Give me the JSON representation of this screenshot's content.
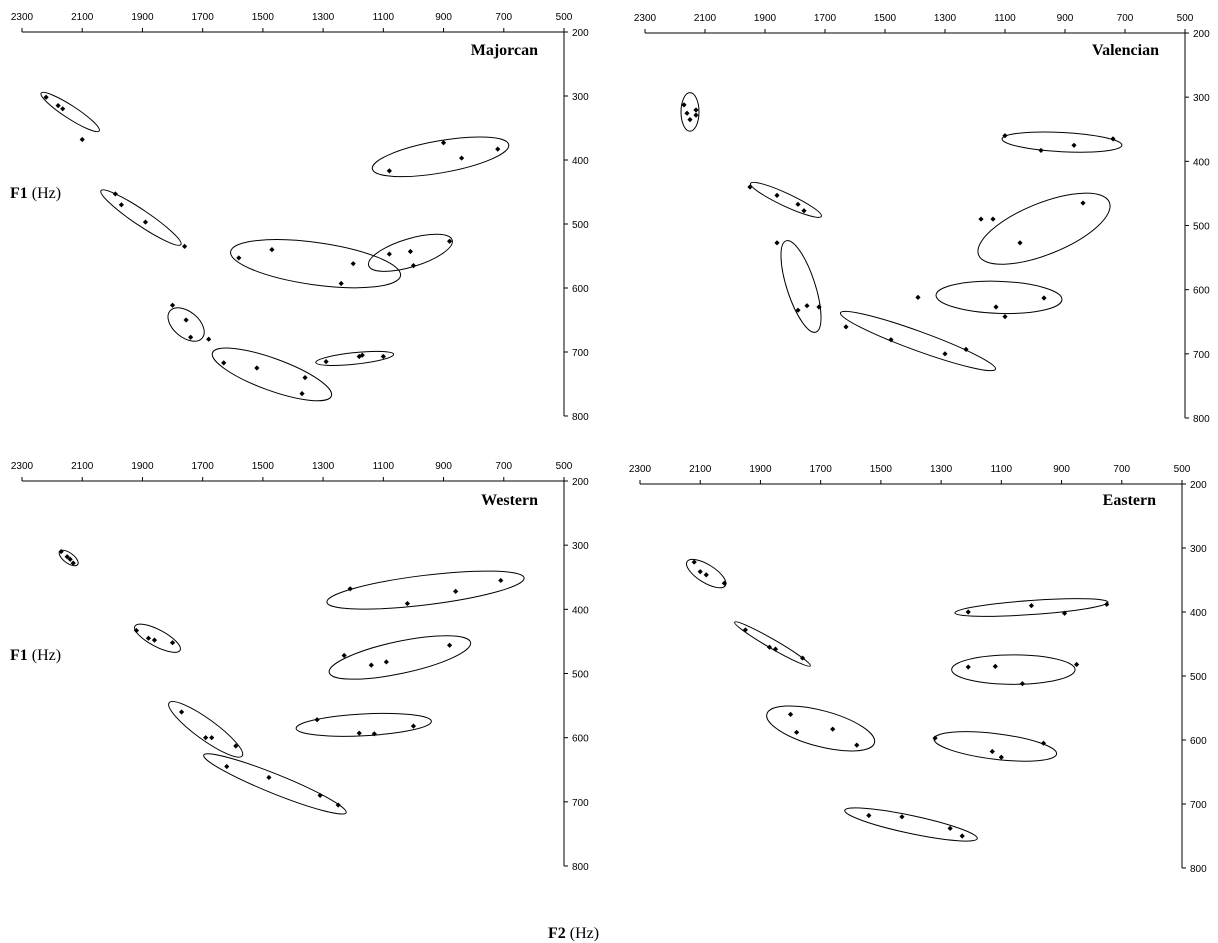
{
  "chart_data": [
    {
      "type": "scatter",
      "title": "Majorcan",
      "xlim": [
        2300,
        500
      ],
      "ylim": [
        200,
        800
      ],
      "xticks": [
        "2300",
        "2100",
        "1900",
        "1700",
        "1500",
        "1300",
        "1100",
        "900",
        "700",
        "500"
      ],
      "yticks": [
        "200",
        "300",
        "400",
        "500",
        "600",
        "700",
        "800"
      ],
      "points": [
        [
          2220,
          302
        ],
        [
          2180,
          315
        ],
        [
          2165,
          320
        ],
        [
          2100,
          368
        ],
        [
          1990,
          453
        ],
        [
          1970,
          470
        ],
        [
          1890,
          497
        ],
        [
          1760,
          535
        ],
        [
          1800,
          627
        ],
        [
          1755,
          650
        ],
        [
          1740,
          677
        ],
        [
          1680,
          680
        ],
        [
          1580,
          553
        ],
        [
          1470,
          540
        ],
        [
          1200,
          562
        ],
        [
          1240,
          593
        ],
        [
          1080,
          547
        ],
        [
          1010,
          543
        ],
        [
          1000,
          565
        ],
        [
          880,
          527
        ],
        [
          1080,
          417
        ],
        [
          900,
          373
        ],
        [
          840,
          397
        ],
        [
          720,
          383
        ],
        [
          1630,
          717
        ],
        [
          1520,
          725
        ],
        [
          1360,
          740
        ],
        [
          1370,
          765
        ],
        [
          1290,
          715
        ],
        [
          1180,
          707
        ],
        [
          1170,
          705
        ],
        [
          1100,
          707
        ]
      ],
      "ellipses": [
        [
          2140,
          325,
          115,
          10,
          33
        ],
        [
          1905,
          490,
          160,
          12,
          34
        ],
        [
          1755,
          657,
          70,
          20,
          40
        ],
        [
          1325,
          562,
          285,
          33,
          8
        ],
        [
          1010,
          545,
          145,
          22,
          -17
        ],
        [
          910,
          395,
          230,
          25,
          -10
        ],
        [
          1470,
          735,
          210,
          25,
          20
        ],
        [
          1195,
          710,
          130,
          9,
          -6
        ]
      ]
    },
    {
      "type": "scatter",
      "title": "Valencian",
      "xlim": [
        2300,
        500
      ],
      "ylim": [
        200,
        800
      ],
      "xticks": [
        "2300",
        "2100",
        "1900",
        "1700",
        "1500",
        "1300",
        "1100",
        "900",
        "700",
        "500"
      ],
      "yticks": [
        "200",
        "300",
        "400",
        "500",
        "600",
        "700",
        "800"
      ],
      "points": [
        [
          2170,
          312
        ],
        [
          2160,
          325
        ],
        [
          2130,
          320
        ],
        [
          2150,
          335
        ],
        [
          2130,
          328
        ],
        [
          1950,
          440
        ],
        [
          1860,
          453
        ],
        [
          1790,
          467
        ],
        [
          1770,
          477
        ],
        [
          1860,
          527
        ],
        [
          1790,
          632
        ],
        [
          1760,
          625
        ],
        [
          1720,
          627
        ],
        [
          1630,
          658
        ],
        [
          1480,
          678
        ],
        [
          1300,
          700
        ],
        [
          1230,
          693
        ],
        [
          1100,
          360
        ],
        [
          980,
          383
        ],
        [
          870,
          375
        ],
        [
          740,
          365
        ],
        [
          1180,
          490
        ],
        [
          1140,
          490
        ],
        [
          1050,
          527
        ],
        [
          840,
          465
        ],
        [
          1390,
          612
        ],
        [
          1130,
          627
        ],
        [
          1100,
          642
        ],
        [
          970,
          613
        ]
      ],
      "ellipses": [
        [
          2150,
          323,
          30,
          30,
          0
        ],
        [
          1830,
          460,
          130,
          10,
          25
        ],
        [
          1780,
          595,
          160,
          22,
          72
        ],
        [
          1390,
          680,
          275,
          15,
          20
        ],
        [
          1120,
          612,
          210,
          25,
          2
        ],
        [
          970,
          505,
          235,
          40,
          -22
        ],
        [
          910,
          370,
          200,
          15,
          3
        ]
      ]
    },
    {
      "type": "scatter",
      "title": "Western",
      "xlim": [
        2300,
        500
      ],
      "ylim": [
        200,
        800
      ],
      "xticks": [
        "2300",
        "2100",
        "1900",
        "1700",
        "1500",
        "1300",
        "1100",
        "900",
        "700",
        "500"
      ],
      "yticks": [
        "200",
        "300",
        "400",
        "500",
        "600",
        "700",
        "800"
      ],
      "points": [
        [
          2170,
          310
        ],
        [
          2150,
          318
        ],
        [
          2140,
          322
        ],
        [
          2130,
          328
        ],
        [
          1920,
          433
        ],
        [
          1880,
          445
        ],
        [
          1860,
          448
        ],
        [
          1800,
          452
        ],
        [
          1770,
          560
        ],
        [
          1690,
          600
        ],
        [
          1670,
          600
        ],
        [
          1590,
          613
        ],
        [
          1620,
          645
        ],
        [
          1480,
          662
        ],
        [
          1310,
          690
        ],
        [
          1250,
          705
        ],
        [
          1320,
          572
        ],
        [
          1180,
          593
        ],
        [
          1130,
          594
        ],
        [
          1000,
          582
        ],
        [
          1230,
          472
        ],
        [
          1140,
          487
        ],
        [
          1090,
          482
        ],
        [
          880,
          456
        ],
        [
          1210,
          368
        ],
        [
          1020,
          391
        ],
        [
          860,
          372
        ],
        [
          710,
          355
        ]
      ],
      "ellipses": [
        [
          2145,
          320,
          37,
          8,
          36
        ],
        [
          1850,
          445,
          85,
          13,
          28
        ],
        [
          1690,
          587,
          150,
          16,
          36
        ],
        [
          1460,
          672,
          255,
          15,
          22
        ],
        [
          1165,
          580,
          225,
          17,
          -3
        ],
        [
          1045,
          475,
          240,
          25,
          -12
        ],
        [
          960,
          370,
          330,
          23,
          -7
        ]
      ]
    },
    {
      "type": "scatter",
      "title": "Eastern",
      "xlim": [
        2300,
        500
      ],
      "ylim": [
        200,
        800
      ],
      "xticks": [
        "2300",
        "2100",
        "1900",
        "1700",
        "1500",
        "1300",
        "1100",
        "900",
        "700",
        "500"
      ],
      "yticks": [
        "200",
        "300",
        "400",
        "500",
        "600",
        "700",
        "800"
      ],
      "points": [
        [
          2120,
          322
        ],
        [
          2100,
          337
        ],
        [
          2080,
          342
        ],
        [
          2020,
          355
        ],
        [
          1950,
          428
        ],
        [
          1870,
          455
        ],
        [
          1850,
          458
        ],
        [
          1760,
          472
        ],
        [
          1800,
          560
        ],
        [
          1780,
          588
        ],
        [
          1660,
          583
        ],
        [
          1580,
          608
        ],
        [
          1320,
          597
        ],
        [
          1130,
          618
        ],
        [
          1100,
          627
        ],
        [
          960,
          605
        ],
        [
          1210,
          486
        ],
        [
          1120,
          485
        ],
        [
          1030,
          512
        ],
        [
          850,
          482
        ],
        [
          1210,
          400
        ],
        [
          1000,
          390
        ],
        [
          890,
          402
        ],
        [
          750,
          388
        ],
        [
          1540,
          718
        ],
        [
          1430,
          720
        ],
        [
          1270,
          738
        ],
        [
          1230,
          750
        ]
      ],
      "ellipses": [
        [
          2080,
          340,
          75,
          14,
          32
        ],
        [
          1860,
          450,
          145,
          7,
          30
        ],
        [
          1700,
          582,
          185,
          28,
          15
        ],
        [
          1120,
          610,
          205,
          20,
          7
        ],
        [
          1060,
          490,
          205,
          23,
          0
        ],
        [
          1000,
          393,
          255,
          11,
          -4
        ],
        [
          1400,
          732,
          225,
          14,
          12
        ]
      ]
    }
  ],
  "axis_labels": {
    "y_bold": "F1",
    "y_units": "(Hz)",
    "x_bold": "F2",
    "x_units": "(Hz)"
  }
}
